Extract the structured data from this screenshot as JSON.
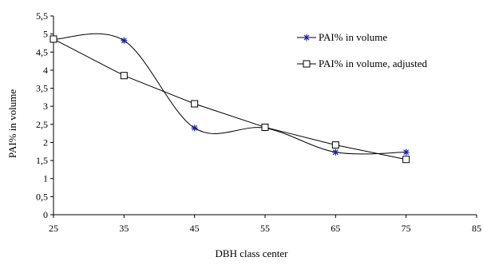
{
  "chart_data": {
    "type": "line",
    "title": "",
    "xlabel": "DBH class center",
    "ylabel": "PAI% in volume",
    "xlim": [
      25,
      85
    ],
    "ylim": [
      0,
      5.5
    ],
    "x_ticks": [
      "25",
      "35",
      "45",
      "55",
      "65",
      "75",
      "85"
    ],
    "y_ticks": [
      "0",
      "0,5",
      "1",
      "1,5",
      "2",
      "2,5",
      "3",
      "3,5",
      "4",
      "4,5",
      "5",
      "5,5"
    ],
    "grid": false,
    "legend_position": "top-right",
    "series": [
      {
        "name": "PAI% in volume",
        "marker": "asterisk",
        "smooth": true,
        "color": "#1a1aa6",
        "x": [
          25,
          35,
          45,
          55,
          65,
          75
        ],
        "y": [
          4.85,
          4.82,
          2.4,
          2.4,
          1.73,
          1.73
        ]
      },
      {
        "name": "PAI% in volume, adjusted",
        "marker": "square",
        "smooth": false,
        "color": "#000000",
        "x": [
          25,
          35,
          45,
          55,
          65,
          75
        ],
        "y": [
          4.86,
          3.85,
          3.07,
          2.42,
          1.93,
          1.53
        ]
      }
    ]
  }
}
